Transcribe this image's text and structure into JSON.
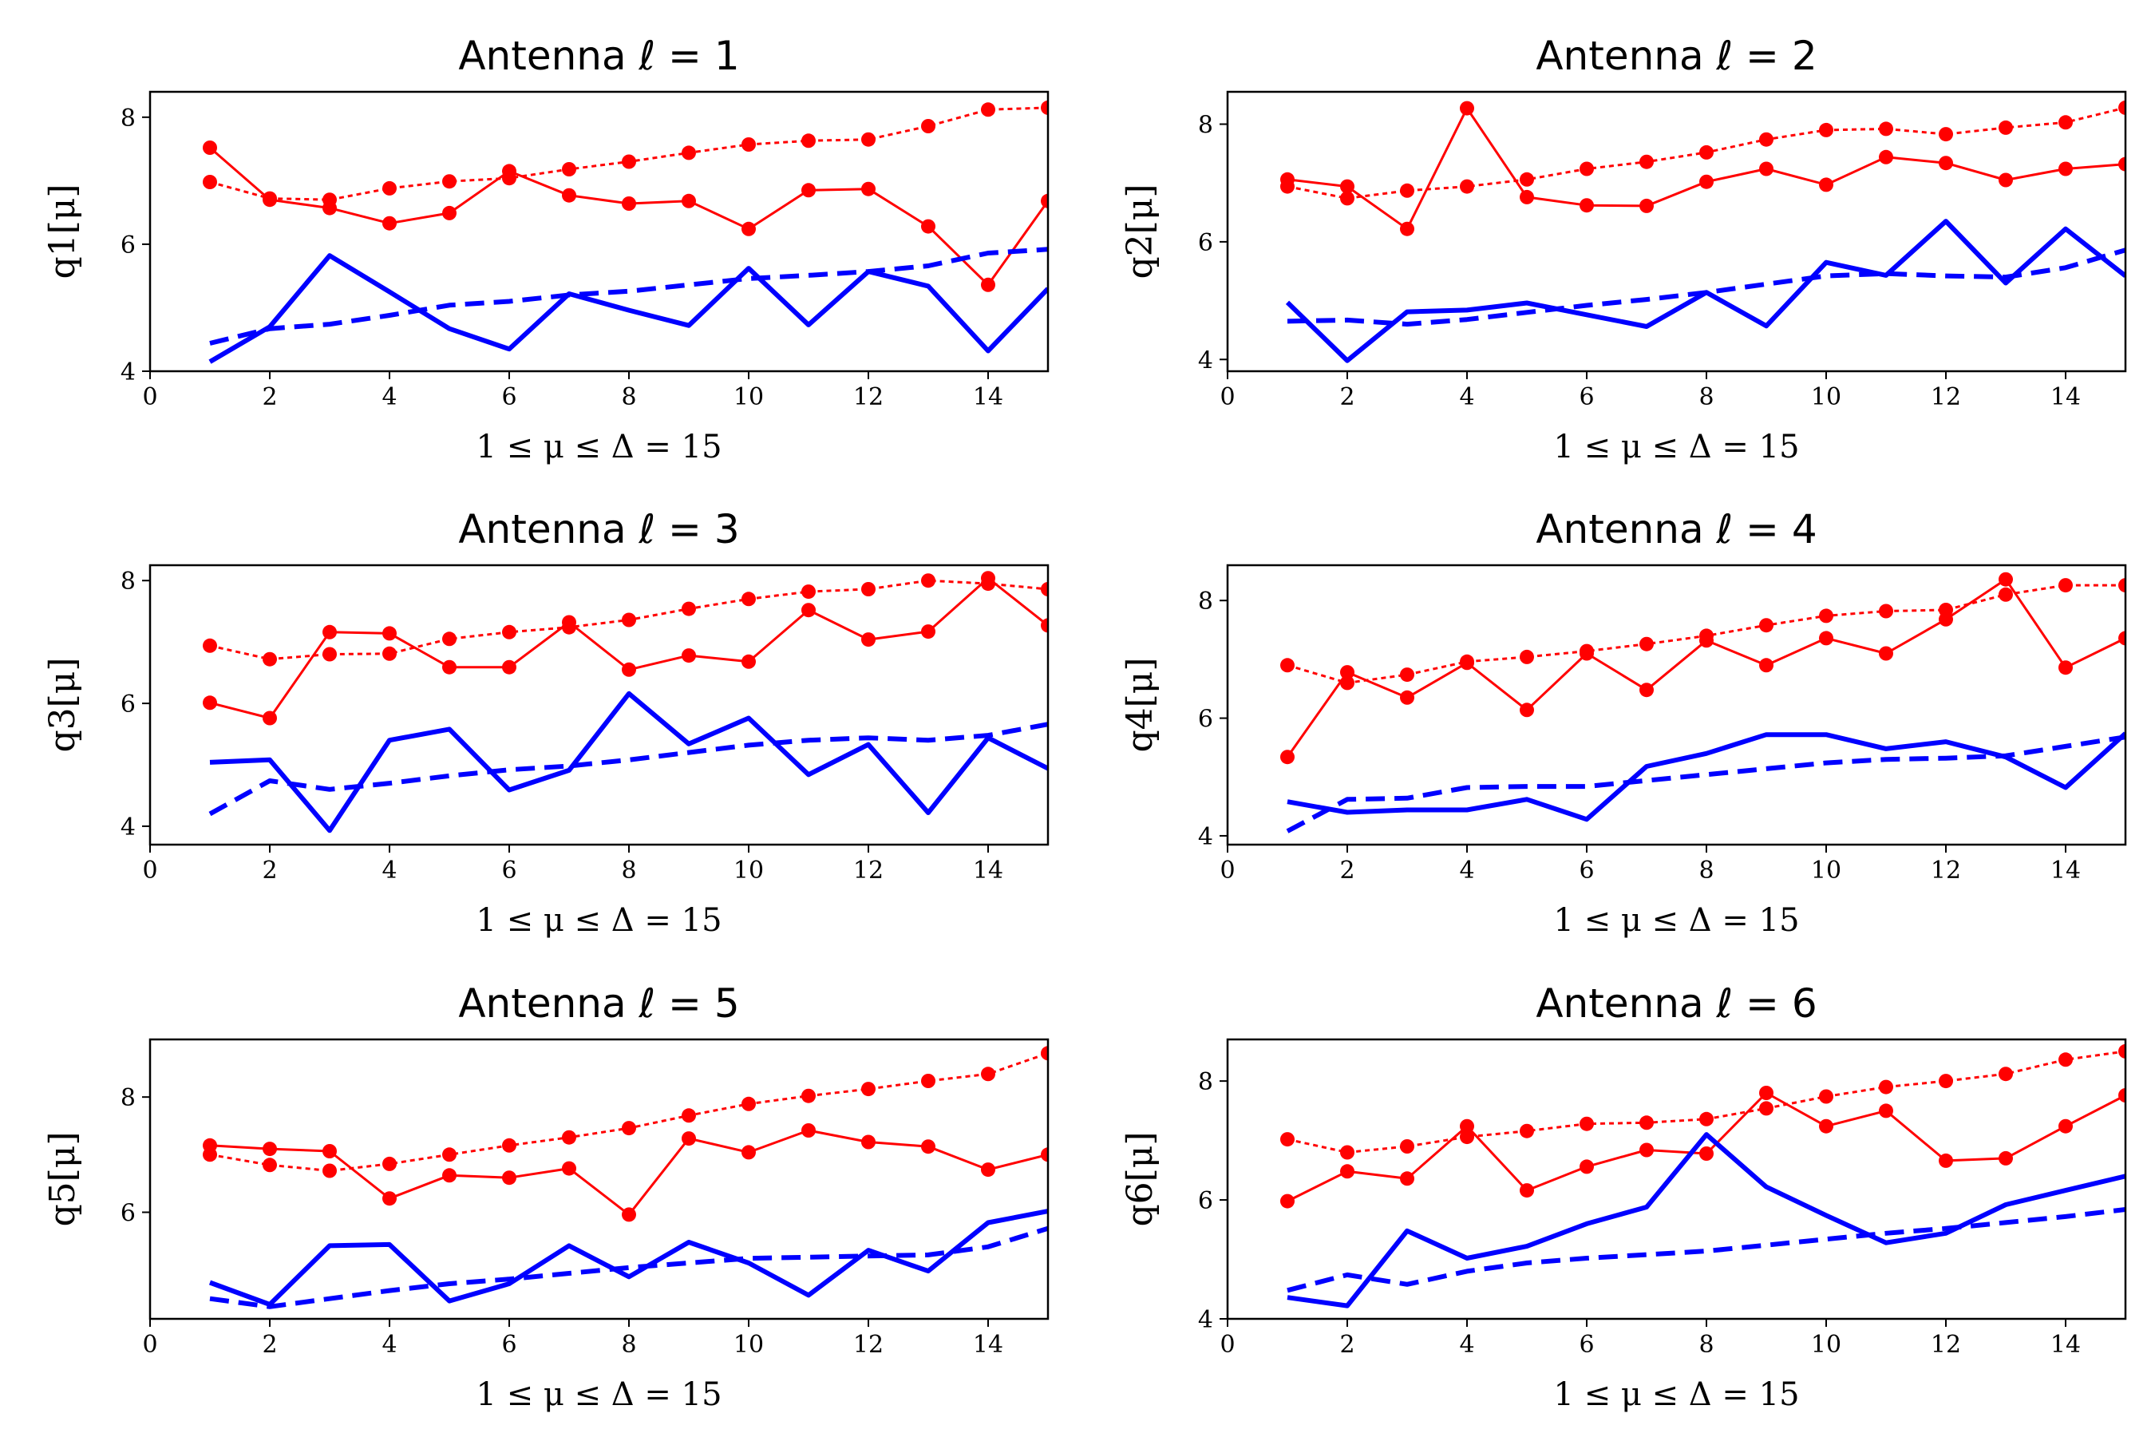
{
  "chart_data": [
    {
      "type": "line",
      "title": "Antenna ℓ = 1",
      "xlabel": "1 ≤ μ ≤ Δ = 15",
      "ylabel": "q1[μ]",
      "xlim": [
        0,
        15
      ],
      "ylim": [
        4,
        8.4
      ],
      "xticks": [
        "0",
        "2",
        "4",
        "6",
        "8",
        "10",
        "12",
        "14"
      ],
      "yticks": [
        "4",
        "6",
        "8"
      ],
      "x": [
        1,
        2,
        3,
        4,
        5,
        6,
        7,
        8,
        9,
        10,
        11,
        12,
        13,
        14,
        15
      ],
      "series": [
        {
          "style": "red-dotted-markers",
          "color": "#ff0000",
          "values": [
            6.98,
            6.72,
            6.7,
            6.88,
            6.99,
            7.04,
            7.18,
            7.3,
            7.44,
            7.57,
            7.63,
            7.65,
            7.86,
            8.12,
            8.15
          ]
        },
        {
          "style": "red-solid-markers",
          "color": "#ff0000",
          "values": [
            7.52,
            6.7,
            6.57,
            6.33,
            6.49,
            7.15,
            6.77,
            6.64,
            6.68,
            6.24,
            6.85,
            6.87,
            6.28,
            5.36,
            6.68
          ]
        },
        {
          "style": "blue-solid",
          "color": "#0000ff",
          "values": [
            4.15,
            4.7,
            5.82,
            5.25,
            4.67,
            4.35,
            5.22,
            4.96,
            4.72,
            5.62,
            4.73,
            5.57,
            5.34,
            4.32,
            5.3
          ]
        },
        {
          "style": "blue-dashed",
          "color": "#0000ff",
          "values": [
            4.44,
            4.67,
            4.74,
            4.88,
            5.04,
            5.1,
            5.2,
            5.26,
            5.36,
            5.46,
            5.51,
            5.57,
            5.66,
            5.86,
            5.92
          ]
        }
      ]
    },
    {
      "type": "line",
      "title": "Antenna ℓ = 2",
      "xlabel": "1 ≤ μ ≤ Δ = 15",
      "ylabel": "q2[μ]",
      "xlim": [
        0,
        15
      ],
      "ylim": [
        3.8,
        8.55
      ],
      "xticks": [
        "0",
        "2",
        "4",
        "6",
        "8",
        "10",
        "12",
        "14"
      ],
      "yticks": [
        "4",
        "6",
        "8"
      ],
      "x": [
        1,
        2,
        3,
        4,
        5,
        6,
        7,
        8,
        9,
        10,
        11,
        12,
        13,
        14,
        15
      ],
      "series": [
        {
          "style": "red-dotted-markers",
          "color": "#ff0000",
          "values": [
            6.94,
            6.74,
            6.87,
            6.94,
            7.06,
            7.24,
            7.36,
            7.52,
            7.74,
            7.9,
            7.92,
            7.83,
            7.94,
            8.03,
            8.28
          ]
        },
        {
          "style": "red-solid-markers",
          "color": "#ff0000",
          "values": [
            7.06,
            6.94,
            6.22,
            8.27,
            6.76,
            6.62,
            6.61,
            7.02,
            7.24,
            6.97,
            7.44,
            7.34,
            7.05,
            7.24,
            7.32
          ]
        },
        {
          "style": "blue-solid",
          "color": "#0000ff",
          "values": [
            4.97,
            3.98,
            4.81,
            4.84,
            4.96,
            4.76,
            4.56,
            5.14,
            4.57,
            5.65,
            5.43,
            6.35,
            5.3,
            6.22,
            5.42
          ]
        },
        {
          "style": "blue-dashed",
          "color": "#0000ff",
          "values": [
            4.65,
            4.67,
            4.6,
            4.68,
            4.8,
            4.92,
            5.02,
            5.14,
            5.28,
            5.42,
            5.46,
            5.42,
            5.4,
            5.56,
            5.86
          ]
        }
      ]
    },
    {
      "type": "line",
      "title": "Antenna ℓ = 3",
      "xlabel": "1 ≤ μ ≤ Δ = 15",
      "ylabel": "q3[μ]",
      "xlim": [
        0,
        15
      ],
      "ylim": [
        3.7,
        8.25
      ],
      "xticks": [
        "0",
        "2",
        "4",
        "6",
        "8",
        "10",
        "12",
        "14"
      ],
      "yticks": [
        "4",
        "6",
        "8"
      ],
      "x": [
        1,
        2,
        3,
        4,
        5,
        6,
        7,
        8,
        9,
        10,
        11,
        12,
        13,
        14,
        15
      ],
      "series": [
        {
          "style": "red-dotted-markers",
          "color": "#ff0000",
          "values": [
            6.94,
            6.72,
            6.8,
            6.81,
            7.05,
            7.16,
            7.24,
            7.36,
            7.54,
            7.7,
            7.82,
            7.86,
            8.0,
            7.95,
            7.86
          ]
        },
        {
          "style": "red-solid-markers",
          "color": "#ff0000",
          "values": [
            6.01,
            5.76,
            7.16,
            7.14,
            6.59,
            6.59,
            7.32,
            6.55,
            6.78,
            6.68,
            7.52,
            7.04,
            7.17,
            8.04,
            7.27
          ]
        },
        {
          "style": "blue-solid",
          "color": "#0000ff",
          "values": [
            5.04,
            5.08,
            3.93,
            5.4,
            5.58,
            4.59,
            4.91,
            6.16,
            5.34,
            5.76,
            4.84,
            5.33,
            4.22,
            5.44,
            4.94
          ]
        },
        {
          "style": "blue-dashed",
          "color": "#0000ff",
          "values": [
            4.2,
            4.74,
            4.6,
            4.7,
            4.82,
            4.92,
            4.98,
            5.08,
            5.2,
            5.32,
            5.4,
            5.44,
            5.4,
            5.48,
            5.66
          ]
        }
      ]
    },
    {
      "type": "line",
      "title": "Antenna ℓ = 4",
      "xlabel": "1 ≤ μ ≤ Δ = 15",
      "ylabel": "q4[μ]",
      "xlim": [
        0,
        15
      ],
      "ylim": [
        3.85,
        8.6
      ],
      "xticks": [
        "0",
        "2",
        "4",
        "6",
        "8",
        "10",
        "12",
        "14"
      ],
      "yticks": [
        "4",
        "6",
        "8"
      ],
      "x": [
        1,
        2,
        3,
        4,
        5,
        6,
        7,
        8,
        9,
        10,
        11,
        12,
        13,
        14,
        15
      ],
      "series": [
        {
          "style": "red-dotted-markers",
          "color": "#ff0000",
          "values": [
            6.9,
            6.6,
            6.74,
            6.96,
            7.04,
            7.14,
            7.26,
            7.4,
            7.58,
            7.74,
            7.82,
            7.84,
            8.1,
            8.26,
            8.26
          ]
        },
        {
          "style": "red-solid-markers",
          "color": "#ff0000",
          "values": [
            5.34,
            6.78,
            6.35,
            6.94,
            6.14,
            7.1,
            6.48,
            7.32,
            6.9,
            7.36,
            7.1,
            7.68,
            8.36,
            6.86,
            7.36
          ]
        },
        {
          "style": "blue-solid",
          "color": "#0000ff",
          "values": [
            4.58,
            4.4,
            4.44,
            4.44,
            4.62,
            4.28,
            5.18,
            5.4,
            5.72,
            5.72,
            5.48,
            5.6,
            5.34,
            4.82,
            5.74
          ]
        },
        {
          "style": "blue-dashed",
          "color": "#0000ff",
          "values": [
            4.08,
            4.62,
            4.64,
            4.82,
            4.84,
            4.84,
            4.94,
            5.04,
            5.14,
            5.24,
            5.3,
            5.32,
            5.36,
            5.52,
            5.68
          ]
        }
      ]
    },
    {
      "type": "line",
      "title": "Antenna ℓ = 5",
      "xlabel": "1 ≤ μ ≤ Δ = 15",
      "ylabel": "q5[μ]",
      "xlim": [
        0,
        15
      ],
      "ylim": [
        4.15,
        9.0
      ],
      "xticks": [
        "0",
        "2",
        "4",
        "6",
        "8",
        "10",
        "12",
        "14"
      ],
      "yticks": [
        "6",
        "8"
      ],
      "x": [
        1,
        2,
        3,
        4,
        5,
        6,
        7,
        8,
        9,
        10,
        11,
        12,
        13,
        14,
        15
      ],
      "series": [
        {
          "style": "red-dotted-markers",
          "color": "#ff0000",
          "values": [
            7.0,
            6.82,
            6.72,
            6.84,
            7.0,
            7.16,
            7.3,
            7.46,
            7.68,
            7.88,
            8.02,
            8.14,
            8.28,
            8.4,
            8.76
          ]
        },
        {
          "style": "red-solid-markers",
          "color": "#ff0000",
          "values": [
            7.16,
            7.1,
            7.06,
            6.24,
            6.64,
            6.6,
            6.76,
            5.96,
            7.28,
            7.04,
            7.42,
            7.22,
            7.14,
            6.74,
            7.0
          ]
        },
        {
          "style": "blue-solid",
          "color": "#0000ff",
          "values": [
            4.78,
            4.4,
            5.42,
            5.44,
            4.46,
            4.76,
            5.42,
            4.88,
            5.48,
            5.12,
            4.56,
            5.34,
            4.98,
            5.82,
            6.02
          ]
        },
        {
          "style": "blue-dashed",
          "color": "#0000ff",
          "values": [
            4.5,
            4.36,
            4.5,
            4.64,
            4.76,
            4.84,
            4.94,
            5.04,
            5.12,
            5.2,
            5.22,
            5.24,
            5.26,
            5.4,
            5.72
          ]
        }
      ]
    },
    {
      "type": "line",
      "title": "Antenna ℓ = 6",
      "xlabel": "1 ≤ μ ≤ Δ = 15",
      "ylabel": "q6[μ]",
      "xlim": [
        0,
        15
      ],
      "ylim": [
        4.0,
        8.7
      ],
      "xticks": [
        "0",
        "2",
        "4",
        "6",
        "8",
        "10",
        "12",
        "14"
      ],
      "yticks": [
        "4",
        "6",
        "8"
      ],
      "x": [
        1,
        2,
        3,
        4,
        5,
        6,
        7,
        8,
        9,
        10,
        11,
        12,
        13,
        14,
        15
      ],
      "series": [
        {
          "style": "red-dotted-markers",
          "color": "#ff0000",
          "values": [
            7.02,
            6.8,
            6.9,
            7.06,
            7.16,
            7.28,
            7.3,
            7.36,
            7.54,
            7.74,
            7.9,
            8.0,
            8.12,
            8.36,
            8.5
          ]
        },
        {
          "style": "red-solid-markers",
          "color": "#ff0000",
          "values": [
            5.98,
            6.48,
            6.36,
            7.24,
            6.16,
            6.56,
            6.84,
            6.78,
            7.8,
            7.24,
            7.5,
            6.66,
            6.7,
            7.24,
            7.76
          ]
        },
        {
          "style": "blue-solid",
          "color": "#0000ff",
          "values": [
            4.36,
            4.22,
            5.48,
            5.02,
            5.22,
            5.6,
            5.88,
            7.1,
            6.22,
            5.74,
            5.28,
            5.44,
            5.92,
            6.16,
            6.4
          ]
        },
        {
          "style": "blue-dashed",
          "color": "#0000ff",
          "values": [
            4.48,
            4.74,
            4.58,
            4.8,
            4.94,
            5.02,
            5.08,
            5.14,
            5.24,
            5.34,
            5.44,
            5.52,
            5.62,
            5.72,
            5.84
          ]
        }
      ]
    }
  ]
}
